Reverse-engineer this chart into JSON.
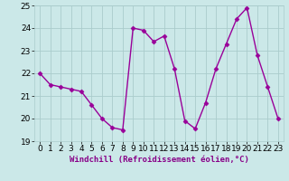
{
  "x": [
    0,
    1,
    2,
    3,
    4,
    5,
    6,
    7,
    8,
    9,
    10,
    11,
    12,
    13,
    14,
    15,
    16,
    17,
    18,
    19,
    20,
    21,
    22,
    23
  ],
  "y": [
    22.0,
    21.5,
    21.4,
    21.3,
    21.2,
    20.6,
    20.0,
    19.6,
    19.5,
    24.0,
    23.9,
    23.4,
    23.65,
    22.2,
    19.9,
    19.55,
    20.7,
    22.2,
    23.3,
    24.4,
    24.9,
    22.8,
    21.4,
    20.0
  ],
  "line_color": "#990099",
  "marker": "D",
  "marker_size": 2.5,
  "bg_color": "#cbe8e8",
  "grid_color": "#aacccc",
  "xlabel": "Windchill (Refroidissement éolien,°C)",
  "xlim": [
    -0.5,
    23.5
  ],
  "ylim": [
    19,
    25
  ],
  "yticks": [
    19,
    20,
    21,
    22,
    23,
    24,
    25
  ],
  "xticks": [
    0,
    1,
    2,
    3,
    4,
    5,
    6,
    7,
    8,
    9,
    10,
    11,
    12,
    13,
    14,
    15,
    16,
    17,
    18,
    19,
    20,
    21,
    22,
    23
  ],
  "xlabel_fontsize": 6.5,
  "tick_fontsize": 6.5,
  "line_width": 1.0
}
